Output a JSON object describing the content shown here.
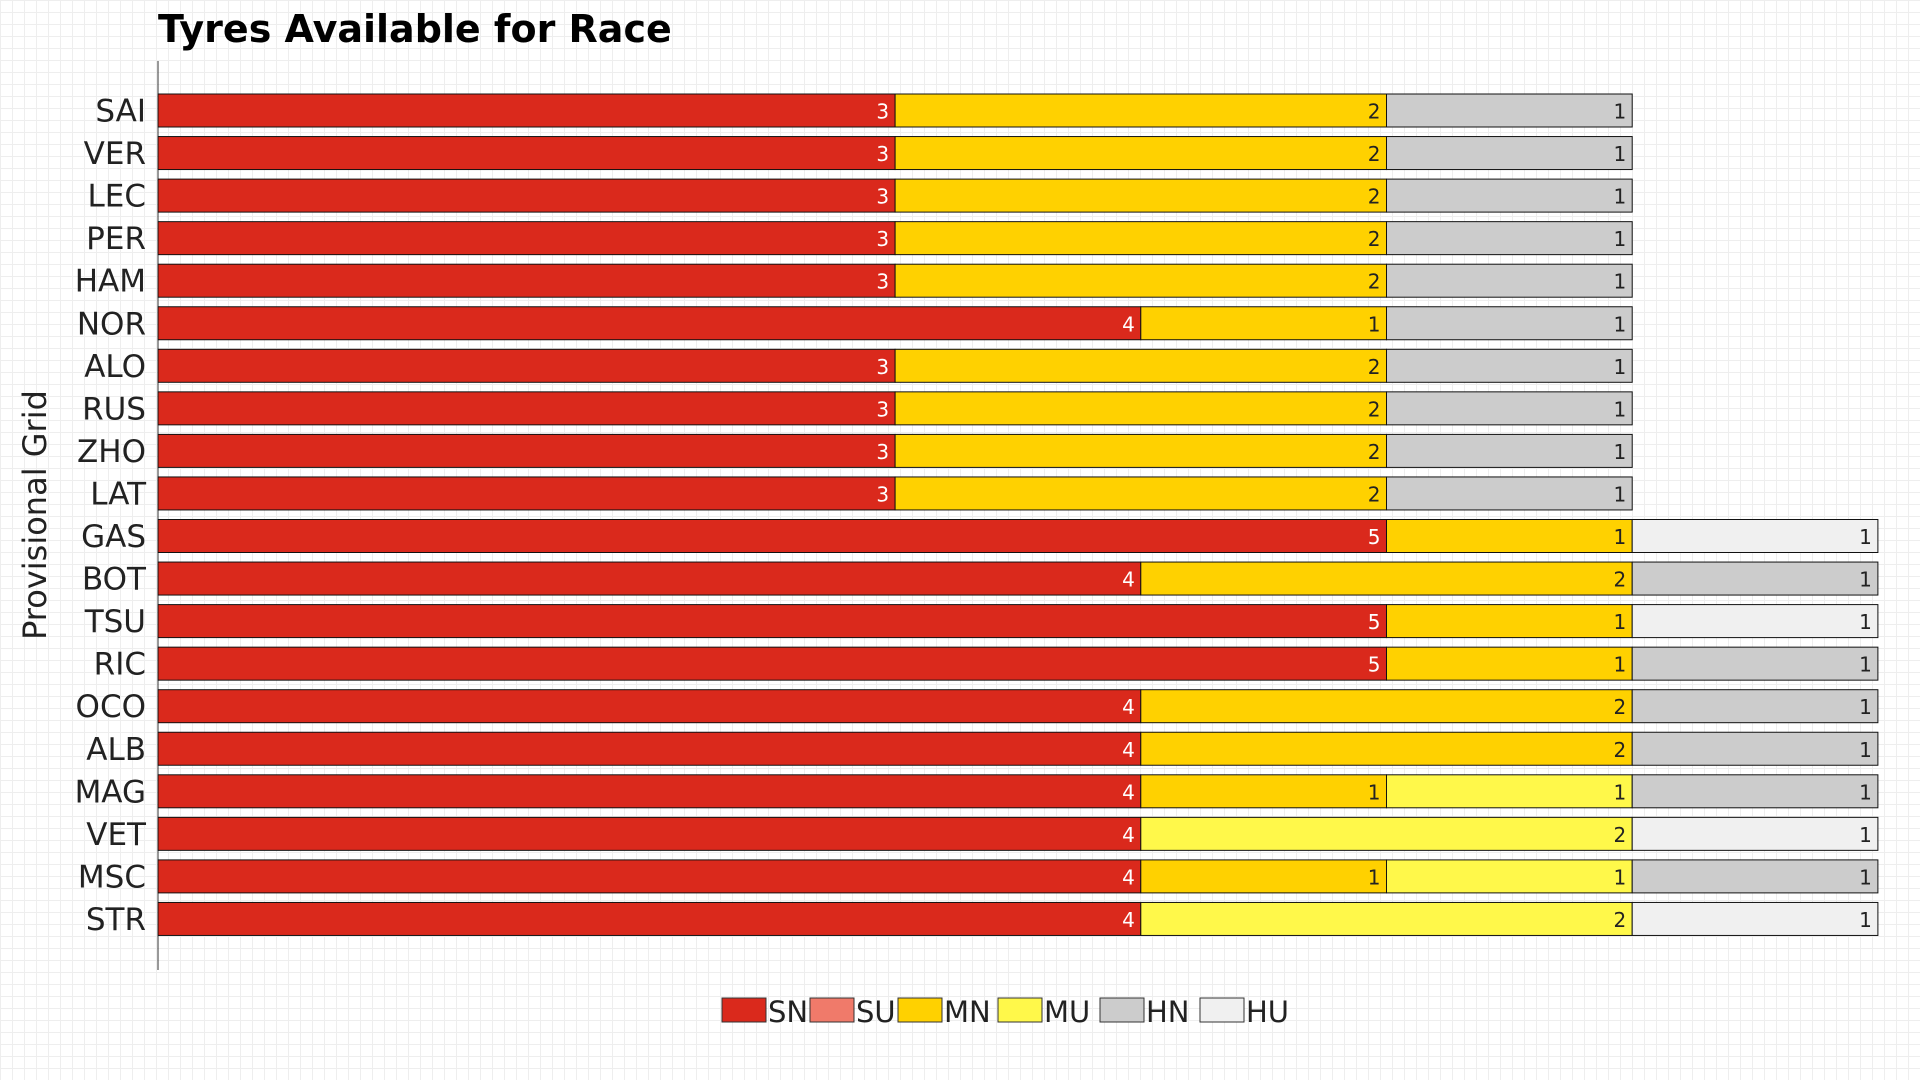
{
  "chart_data": {
    "type": "bar",
    "orientation": "horizontal",
    "stacked": true,
    "title": "Tyres Available for Race",
    "ylabel": "Provisional Grid",
    "xlabel": "",
    "xlim": [
      0,
      7
    ],
    "grid": false,
    "legend_position": "bottom",
    "compound_colors": {
      "SN": "#da291c",
      "SU": "#f07a6a",
      "MN": "#ffd100",
      "MU": "#fff84a",
      "HN": "#cccccc",
      "HU": "#f0f0f0"
    },
    "legend": [
      "SN",
      "SU",
      "MN",
      "MU",
      "HN",
      "HU"
    ],
    "categories": [
      "SAI",
      "VER",
      "LEC",
      "PER",
      "HAM",
      "NOR",
      "ALO",
      "RUS",
      "ZHO",
      "LAT",
      "GAS",
      "BOT",
      "TSU",
      "RIC",
      "OCO",
      "ALB",
      "MAG",
      "VET",
      "MSC",
      "STR"
    ],
    "rows": [
      [
        [
          "SN",
          3
        ],
        [
          "MN",
          2
        ],
        [
          "HN",
          1
        ]
      ],
      [
        [
          "SN",
          3
        ],
        [
          "MN",
          2
        ],
        [
          "HN",
          1
        ]
      ],
      [
        [
          "SN",
          3
        ],
        [
          "MN",
          2
        ],
        [
          "HN",
          1
        ]
      ],
      [
        [
          "SN",
          3
        ],
        [
          "MN",
          2
        ],
        [
          "HN",
          1
        ]
      ],
      [
        [
          "SN",
          3
        ],
        [
          "MN",
          2
        ],
        [
          "HN",
          1
        ]
      ],
      [
        [
          "SN",
          4
        ],
        [
          "MN",
          1
        ],
        [
          "HN",
          1
        ]
      ],
      [
        [
          "SN",
          3
        ],
        [
          "MN",
          2
        ],
        [
          "HN",
          1
        ]
      ],
      [
        [
          "SN",
          3
        ],
        [
          "MN",
          2
        ],
        [
          "HN",
          1
        ]
      ],
      [
        [
          "SN",
          3
        ],
        [
          "MN",
          2
        ],
        [
          "HN",
          1
        ]
      ],
      [
        [
          "SN",
          3
        ],
        [
          "MN",
          2
        ],
        [
          "HN",
          1
        ]
      ],
      [
        [
          "SN",
          5
        ],
        [
          "MN",
          1
        ],
        [
          "HU",
          1
        ]
      ],
      [
        [
          "SN",
          4
        ],
        [
          "MN",
          2
        ],
        [
          "HN",
          1
        ]
      ],
      [
        [
          "SN",
          5
        ],
        [
          "MN",
          1
        ],
        [
          "HU",
          1
        ]
      ],
      [
        [
          "SN",
          5
        ],
        [
          "MN",
          1
        ],
        [
          "HN",
          1
        ]
      ],
      [
        [
          "SN",
          4
        ],
        [
          "MN",
          2
        ],
        [
          "HN",
          1
        ]
      ],
      [
        [
          "SN",
          4
        ],
        [
          "MN",
          2
        ],
        [
          "HN",
          1
        ]
      ],
      [
        [
          "SN",
          4
        ],
        [
          "MN",
          1
        ],
        [
          "MU",
          1
        ],
        [
          "HN",
          1
        ]
      ],
      [
        [
          "SN",
          4
        ],
        [
          "MU",
          2
        ],
        [
          "HU",
          1
        ]
      ],
      [
        [
          "SN",
          4
        ],
        [
          "MN",
          1
        ],
        [
          "MU",
          1
        ],
        [
          "HN",
          1
        ]
      ],
      [
        [
          "SN",
          4
        ],
        [
          "MU",
          2
        ],
        [
          "HU",
          1
        ]
      ]
    ]
  }
}
